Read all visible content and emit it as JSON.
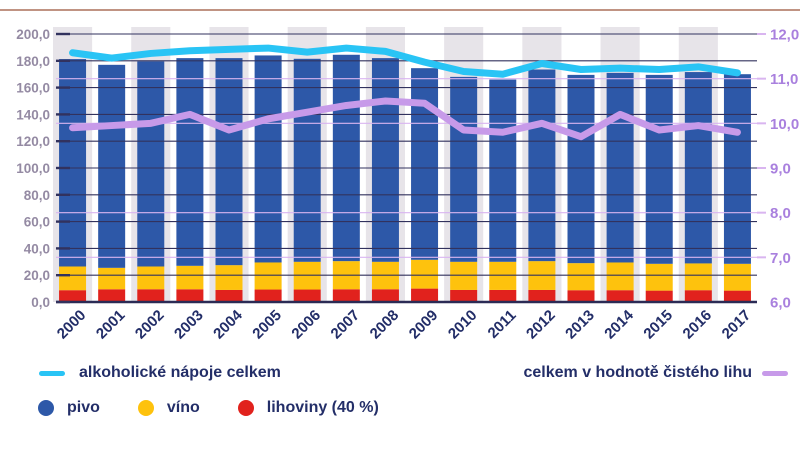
{
  "colors": {
    "top_rule": "#c09383",
    "band": "#e7e4e9",
    "grid_dark": "#32325e",
    "grid_light": "#d9b5f0",
    "axis_line": "#2b2b55",
    "left_axis_labels": "#948aa3",
    "right_axis_labels": "#a980de",
    "year_labels": "#232e68",
    "legend_text": "#232e68",
    "beer": "#2d58a8",
    "wine": "#fec20d",
    "spirits": "#e1221d",
    "total_line": "#29c4f5",
    "pure_alcohol_line": "#c79ae9"
  },
  "chart_data": {
    "type": "bar",
    "subtype": "stacked-bars-with-two-lines",
    "categories": [
      "2000",
      "2001",
      "2002",
      "2003",
      "2004",
      "2005",
      "2006",
      "2007",
      "2008",
      "2009",
      "2010",
      "2011",
      "2012",
      "2013",
      "2014",
      "2015",
      "2016",
      "2017"
    ],
    "series": [
      {
        "name": "pivo",
        "kind": "bar-segment",
        "color": "#2d58a8",
        "values": [
          154.8,
          151.5,
          153.0,
          155.0,
          154.5,
          154.5,
          151.5,
          154.0,
          152.0,
          143.0,
          138.0,
          136.0,
          143.0,
          140.5,
          141.5,
          141.0,
          142.8,
          141.5
        ]
      },
      {
        "name": "víno",
        "kind": "bar-segment",
        "color": "#fec20d",
        "values": [
          17.7,
          16.0,
          17.0,
          17.5,
          18.5,
          20.2,
          20.7,
          21.0,
          20.5,
          21.5,
          21.0,
          21.0,
          21.5,
          20.2,
          20.7,
          20.0,
          20.0,
          20.0
        ]
      },
      {
        "name": "lihoviny (40 %)",
        "kind": "bar-segment",
        "color": "#e1221d",
        "values": [
          8.8,
          9.5,
          9.5,
          9.5,
          9.0,
          9.3,
          9.3,
          9.5,
          9.5,
          10.0,
          9.0,
          9.0,
          9.0,
          8.8,
          8.8,
          8.5,
          8.8,
          8.5
        ]
      },
      {
        "name": "alkoholické nápoje celkem",
        "kind": "line",
        "axis": "left",
        "color": "#29c4f5",
        "values": [
          186.0,
          182.0,
          185.5,
          187.5,
          188.5,
          189.5,
          186.5,
          189.5,
          187.0,
          179.0,
          172.0,
          170.0,
          178.0,
          173.5,
          174.5,
          173.5,
          175.5,
          171.0
        ]
      },
      {
        "name": "celkem v hodnotě čistého lihu",
        "kind": "line",
        "axis": "right",
        "color": "#c79ae9",
        "values": [
          9.9,
          9.95,
          10.0,
          10.2,
          9.85,
          10.1,
          10.25,
          10.4,
          10.5,
          10.45,
          9.85,
          9.8,
          10.0,
          9.7,
          10.2,
          9.85,
          9.95,
          9.8
        ]
      }
    ],
    "left_axis": {
      "min": 0,
      "max": 200,
      "tick_labels": [
        "0,0",
        "20,0",
        "40,0",
        "60,0",
        "80,0",
        "100,0",
        "120,0",
        "140,0",
        "160,0",
        "180,0",
        "200,0"
      ]
    },
    "right_axis": {
      "min": 6,
      "max": 12,
      "tick_labels": [
        "6,0",
        "7,0",
        "8,0",
        "9,0",
        "10,0",
        "11,0",
        "12,0"
      ]
    },
    "grid": "horizontal, dark lines every 20 left-units drawn over bars; light purple lines at right-axis integers",
    "legend_position": "bottom"
  },
  "legend": {
    "total_line": "alkoholické nápoje celkem",
    "pure_alcohol_line": "celkem v hodnotě čistého lihu",
    "items": [
      {
        "label": "pivo",
        "color": "#2d58a8"
      },
      {
        "label": "víno",
        "color": "#fec20d"
      },
      {
        "label": "lihoviny (40 %)",
        "color": "#e1221d"
      }
    ]
  }
}
